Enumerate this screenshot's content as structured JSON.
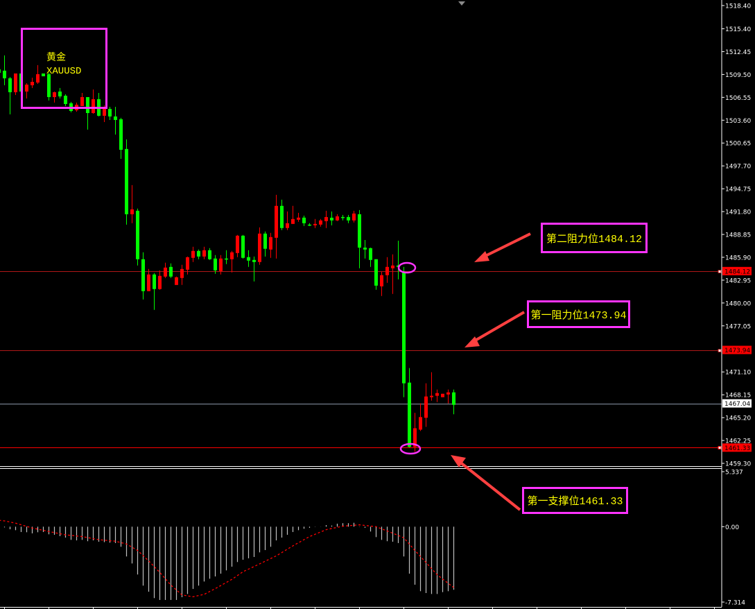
{
  "symbol": {
    "name_cn": "黄金",
    "ticker": "XAUUSD"
  },
  "annotations": {
    "resistance_2": "第二阻力位1484.12",
    "resistance_1": "第一阻力位1473.94",
    "support_1": "第一支撑位1461.33"
  },
  "colors": {
    "background": "#000000",
    "down_candle": "#00ff00",
    "up_candle": "#ff0000",
    "annotation_border": "#ff33ff",
    "annotation_text": "#ffff00",
    "macd_histogram": "#c0c0c0",
    "macd_signal": "#ff0000"
  },
  "chart_data": [
    {
      "type": "candlestick",
      "symbol": "XAUUSD",
      "ylim": [
        1459.3,
        1518.4
      ],
      "grid": false,
      "y_ticks": [
        "1518.40",
        "1515.40",
        "1512.45",
        "1509.50",
        "1506.55",
        "1503.60",
        "1500.65",
        "1497.70",
        "1494.75",
        "1491.80",
        "1488.85",
        "1485.90",
        "1482.95",
        "1480.00",
        "1477.05",
        "1471.10",
        "1468.15",
        "1465.20",
        "1462.25",
        "1459.30"
      ],
      "levels": [
        {
          "value": "1484.12",
          "kind": "resistance",
          "color": "#b01818"
        },
        {
          "value": "1473.94",
          "kind": "resistance",
          "color": "#b01818"
        },
        {
          "value": "1467.04",
          "kind": "last-price",
          "color": "#8a96a8"
        },
        {
          "value": "1461.33",
          "kind": "support",
          "color": "#ff0000"
        }
      ],
      "ohlc": [
        [
          1510.17,
          1510.35,
          1509.54,
          1509.72
        ],
        [
          1509.99,
          1511.96,
          1508.11,
          1509.01
        ],
        [
          1509.01,
          1509.18,
          1504.35,
          1507.21
        ],
        [
          1507.21,
          1509.63,
          1506.85,
          1509.63
        ],
        [
          1509.63,
          1509.81,
          1507.12,
          1507.3
        ],
        [
          1507.3,
          1508.37,
          1506.4,
          1508.19
        ],
        [
          1508.11,
          1509.09,
          1507.75,
          1508.55
        ],
        [
          1508.46,
          1510.71,
          1508.28,
          1509.54
        ],
        [
          1509.63,
          1509.63,
          1509.27,
          1509.27
        ],
        [
          1509.54,
          1509.72,
          1506.14,
          1506.58
        ],
        [
          1506.58,
          1507.3,
          1505.87,
          1507.21
        ],
        [
          1507.3,
          1507.75,
          1506.4,
          1506.67
        ],
        [
          1506.76,
          1506.94,
          1505.42,
          1505.69
        ],
        [
          1505.78,
          1505.96,
          1504.61,
          1504.79
        ],
        [
          1504.88,
          1505.87,
          1504.7,
          1505.6
        ],
        [
          1505.42,
          1507.12,
          1505.42,
          1506.58
        ],
        [
          1506.58,
          1506.58,
          1502.38,
          1504.52
        ],
        [
          1504.52,
          1507.57,
          1504.43,
          1506.31
        ],
        [
          1506.31,
          1507.12,
          1504.08,
          1504.17
        ],
        [
          1504.17,
          1505.51,
          1503.36,
          1505.15
        ],
        [
          1505.06,
          1505.33,
          1503.63,
          1504.08
        ],
        [
          1504.08,
          1505.33,
          1501.75,
          1503.63
        ],
        [
          1503.72,
          1503.9,
          1498.61,
          1499.78
        ],
        [
          1499.88,
          1501.12,
          1490.12,
          1491.46
        ],
        [
          1491.46,
          1495.22,
          1490.3,
          1492.09
        ],
        [
          1491.91,
          1492.18,
          1484.84,
          1485.65
        ],
        [
          1485.65,
          1486.54,
          1480.46,
          1481.53
        ],
        [
          1481.53,
          1484.39,
          1481.53,
          1483.68
        ],
        [
          1483.68,
          1483.86,
          1479.11,
          1481.8
        ],
        [
          1481.8,
          1484.21,
          1481.71,
          1483.5
        ],
        [
          1483.41,
          1485.2,
          1483.23,
          1484.57
        ],
        [
          1484.66,
          1485.11,
          1483.23,
          1483.41
        ],
        [
          1482.33,
          1483.41,
          1482.33,
          1483.32
        ],
        [
          1483.23,
          1484.93,
          1482.33,
          1484.39
        ],
        [
          1484.3,
          1486.0,
          1483.68,
          1485.91
        ],
        [
          1485.83,
          1487.26,
          1485.29,
          1486.72
        ],
        [
          1486.72,
          1486.9,
          1485.65,
          1486.0
        ],
        [
          1486.0,
          1487.26,
          1485.65,
          1486.81
        ],
        [
          1486.81,
          1487.08,
          1485.56,
          1485.65
        ],
        [
          1485.74,
          1486.19,
          1483.77,
          1484.21
        ],
        [
          1484.12,
          1486.19,
          1483.68,
          1485.74
        ],
        [
          1485.74,
          1486.81,
          1485.02,
          1485.7
        ],
        [
          1485.65,
          1486.72,
          1483.95,
          1486.54
        ],
        [
          1486.45,
          1488.78,
          1485.92,
          1488.69
        ],
        [
          1488.69,
          1488.78,
          1485.74,
          1485.83
        ],
        [
          1485.92,
          1486.81,
          1484.66,
          1485.47
        ],
        [
          1485.56,
          1486.0,
          1482.78,
          1485.29
        ],
        [
          1485.29,
          1489.76,
          1484.93,
          1488.96
        ],
        [
          1488.96,
          1489.23,
          1486.0,
          1487.0
        ],
        [
          1486.9,
          1489.05,
          1485.83,
          1488.51
        ],
        [
          1488.42,
          1493.97,
          1485.74,
          1492.54
        ],
        [
          1492.54,
          1493.34,
          1489.41,
          1489.68
        ],
        [
          1489.68,
          1491.82,
          1489.41,
          1490.3
        ],
        [
          1490.21,
          1492.54,
          1490.21,
          1490.84
        ],
        [
          1490.75,
          1491.64,
          1490.48,
          1491.02
        ],
        [
          1491.02,
          1491.28,
          1489.94,
          1490.3
        ],
        [
          1490.12,
          1490.3,
          1489.94,
          1490.1
        ],
        [
          1490.03,
          1490.84,
          1489.68,
          1490.21
        ],
        [
          1490.12,
          1490.84,
          1489.86,
          1490.66
        ],
        [
          1490.57,
          1491.91,
          1489.68,
          1491.1
        ],
        [
          1491.01,
          1491.82,
          1490.03,
          1490.66
        ],
        [
          1490.66,
          1491.46,
          1490.57,
          1491.19
        ],
        [
          1491.1,
          1491.37,
          1490.66,
          1491.08
        ],
        [
          1491.1,
          1491.37,
          1490.3,
          1490.66
        ],
        [
          1490.66,
          1491.91,
          1490.39,
          1491.55
        ],
        [
          1491.46,
          1492.0,
          1484.48,
          1487.15
        ],
        [
          1487.15,
          1488.13,
          1485.74,
          1486.9
        ],
        [
          1487.08,
          1487.15,
          1484.66,
          1485.56
        ],
        [
          1485.65,
          1485.65,
          1481.71,
          1482.24
        ],
        [
          1482.15,
          1484.03,
          1480.9,
          1483.59
        ],
        [
          1483.59,
          1485.92,
          1482.6,
          1484.66
        ],
        [
          1484.48,
          1486.27,
          1481.17,
          1484.84
        ],
        [
          1484.84,
          1488.04,
          1483.05,
          1484.66
        ],
        [
          1484.03,
          1484.66,
          1467.84,
          1469.63
        ],
        [
          1469.72,
          1471.6,
          1461.33,
          1461.42
        ],
        [
          1461.42,
          1465.81,
          1460.79,
          1463.83
        ],
        [
          1463.65,
          1467.05,
          1463.47,
          1465.27
        ],
        [
          1465.18,
          1469.63,
          1464.01,
          1467.93
        ],
        [
          1467.84,
          1471.06,
          1467.39,
          1468.02
        ],
        [
          1468.02,
          1468.82,
          1467.21,
          1468.37
        ],
        [
          1467.84,
          1468.28,
          1467.84,
          1468.28
        ],
        [
          1468.19,
          1468.82,
          1467.03,
          1468.46
        ],
        [
          1468.46,
          1468.82,
          1465.63,
          1466.85
        ]
      ]
    },
    {
      "type": "bar+line",
      "indicator": "MACD",
      "ylim": [
        -7.314,
        5.337
      ],
      "y_ticks": [
        "5.337",
        "0.00",
        "-7.314"
      ],
      "histogram_start_bar": 1,
      "histogram": [
        -0.07,
        -0.25,
        -0.34,
        -0.52,
        -0.54,
        -0.65,
        -0.54,
        -0.52,
        -0.74,
        -0.79,
        -0.92,
        -1.06,
        -1.28,
        -1.33,
        -1.28,
        -1.41,
        -1.33,
        -1.46,
        -1.5,
        -1.55,
        -1.59,
        -1.95,
        -2.89,
        -3.57,
        -4.64,
        -5.72,
        -6.31,
        -6.93,
        -7.11,
        -7.11,
        -7.11,
        -7.11,
        -6.84,
        -6.53,
        -6.04,
        -5.72,
        -5.32,
        -5.05,
        -4.83,
        -4.56,
        -4.24,
        -3.88,
        -3.43,
        -3.21,
        -3.07,
        -2.94,
        -2.49,
        -2.27,
        -1.95,
        -1.33,
        -1.06,
        -0.79,
        -0.52,
        -0.34,
        -0.2,
        -0.11,
        -0.02,
        -0.01,
        0.15,
        0.11,
        0.29,
        0.34,
        0.34,
        0.38,
        -0.02,
        -0.11,
        -0.47,
        -1.01,
        -1.28,
        -1.41,
        -1.46,
        -1.59,
        -2.89,
        -4.56,
        -5.63,
        -6.26,
        -6.44,
        -6.53,
        -6.53,
        -6.35,
        -6.26,
        -6.12
      ],
      "signal": [
        [
          0,
          0.62
        ],
        [
          1,
          0.56
        ],
        [
          3,
          0.34
        ],
        [
          6,
          -0.13
        ],
        [
          9,
          -0.47
        ],
        [
          12,
          -0.79
        ],
        [
          15,
          -0.96
        ],
        [
          18,
          -1.26
        ],
        [
          21,
          -1.41
        ],
        [
          23,
          -1.68
        ],
        [
          25,
          -2.31
        ],
        [
          27,
          -3.32
        ],
        [
          29,
          -4.44
        ],
        [
          31,
          -5.67
        ],
        [
          33,
          -6.62
        ],
        [
          35,
          -6.8
        ],
        [
          37,
          -6.57
        ],
        [
          39,
          -6.01
        ],
        [
          42,
          -5.11
        ],
        [
          44,
          -4.37
        ],
        [
          47,
          -3.61
        ],
        [
          50,
          -2.83
        ],
        [
          53,
          -1.86
        ],
        [
          56,
          -0.96
        ],
        [
          59,
          -0.29
        ],
        [
          62,
          0.05
        ],
        [
          65,
          0.18
        ],
        [
          68,
          0.0
        ],
        [
          71,
          -0.63
        ],
        [
          73,
          -1.08
        ],
        [
          75,
          -2.31
        ],
        [
          77,
          -3.48
        ],
        [
          79,
          -4.66
        ],
        [
          81,
          -5.5
        ],
        [
          82,
          -5.9
        ]
      ]
    }
  ]
}
